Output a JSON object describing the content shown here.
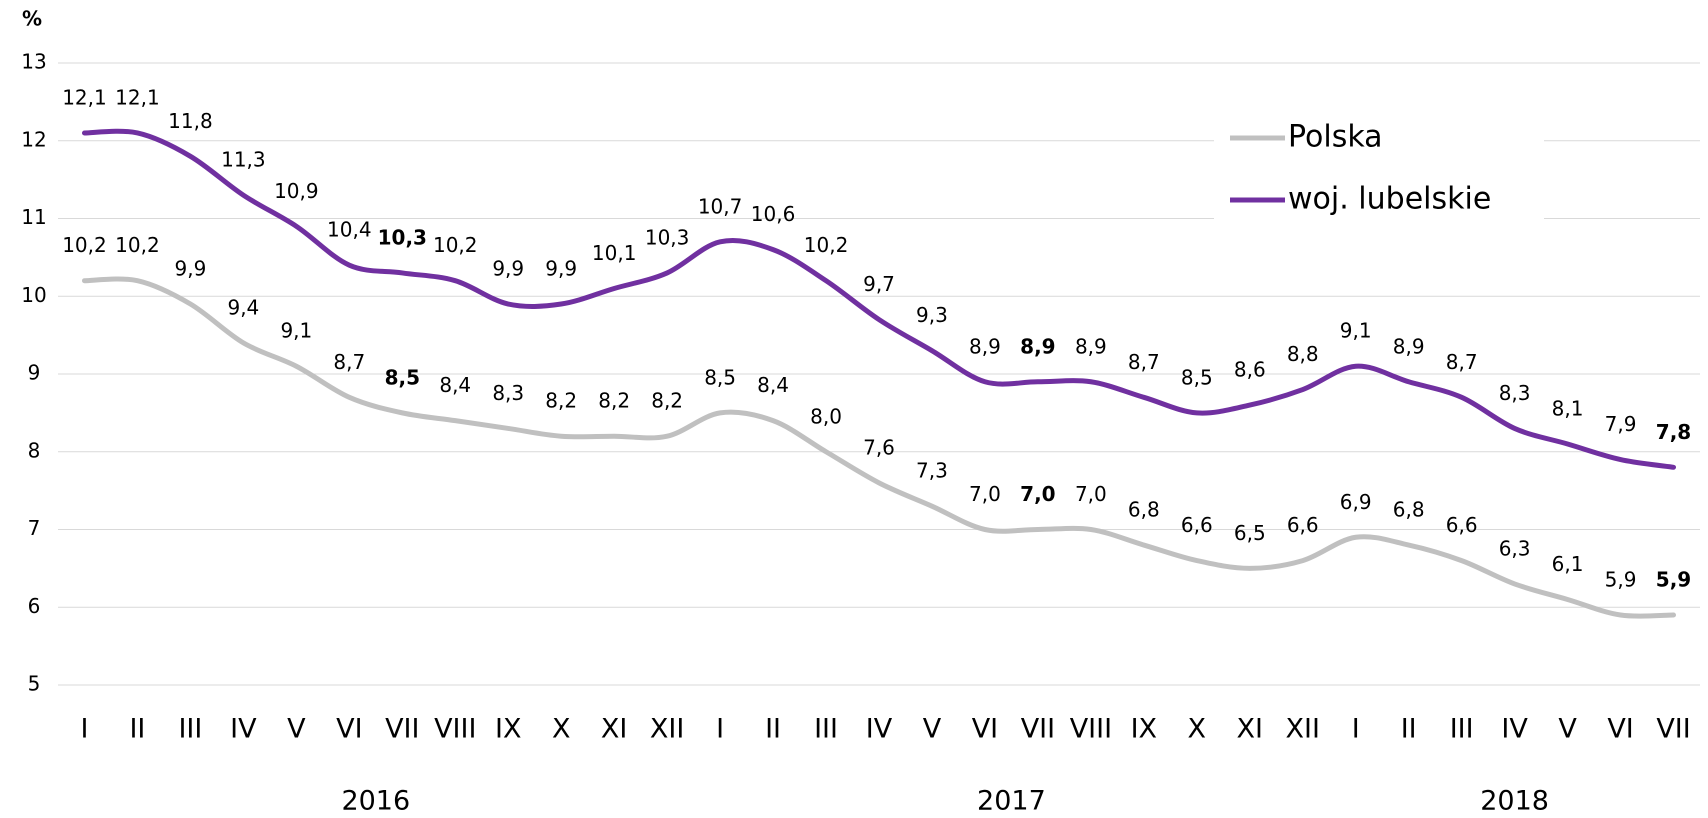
{
  "chart_data": {
    "type": "line",
    "y_label": "%",
    "categories": [
      "I",
      "II",
      "III",
      "IV",
      "V",
      "VI",
      "VII",
      "VIII",
      "IX",
      "X",
      "XI",
      "XII",
      "I",
      "II",
      "III",
      "IV",
      "V",
      "VI",
      "VII",
      "VIII",
      "IX",
      "X",
      "XI",
      "XII",
      "I",
      "II",
      "III",
      "IV",
      "V",
      "VI",
      "VII"
    ],
    "years": [
      "2016",
      "2017",
      "2018"
    ],
    "ylim": [
      5,
      13
    ],
    "yticks": [
      5,
      6,
      7,
      8,
      9,
      10,
      11,
      12,
      13
    ],
    "grid": true,
    "legend": "top-right",
    "bold_label_indices": [
      6,
      18,
      30
    ],
    "series": [
      {
        "name": "Polska",
        "color": "#c0c0c0",
        "values": [
          10.2,
          10.2,
          9.9,
          9.4,
          9.1,
          8.7,
          8.5,
          8.4,
          8.3,
          8.2,
          8.2,
          8.2,
          8.5,
          8.4,
          8.0,
          7.6,
          7.3,
          7.0,
          7.0,
          7.0,
          6.8,
          6.6,
          6.5,
          6.6,
          6.9,
          6.8,
          6.6,
          6.3,
          6.1,
          5.9,
          5.9
        ],
        "value_labels": [
          "10,2",
          "10,2",
          "9,9",
          "9,4",
          "9,1",
          "8,7",
          "8,5",
          "8,4",
          "8,3",
          "8,2",
          "8,2",
          "8,2",
          "8,5",
          "8,4",
          "8,0",
          "7,6",
          "7,3",
          "7,0",
          "7,0",
          "7,0",
          "6,8",
          "6,6",
          "6,5",
          "6,6",
          "6,9",
          "6,8",
          "6,6",
          "6,3",
          "6,1",
          "5,9",
          "5,9"
        ]
      },
      {
        "name": "woj. lubelskie",
        "color": "#7030a0",
        "values": [
          12.1,
          12.1,
          11.8,
          11.3,
          10.9,
          10.4,
          10.3,
          10.2,
          9.9,
          9.9,
          10.1,
          10.3,
          10.7,
          10.6,
          10.2,
          9.7,
          9.3,
          8.9,
          8.9,
          8.9,
          8.7,
          8.5,
          8.6,
          8.8,
          9.1,
          8.9,
          8.7,
          8.3,
          8.1,
          7.9,
          7.8
        ],
        "value_labels": [
          "12,1",
          "12,1",
          "11,8",
          "11,3",
          "10,9",
          "10,4",
          "10,3",
          "10,2",
          "9,9",
          "9,9",
          "10,1",
          "10,3",
          "10,7",
          "10,6",
          "10,2",
          "9,7",
          "9,3",
          "8,9",
          "8,9",
          "8,9",
          "8,7",
          "8,5",
          "8,6",
          "8,8",
          "9,1",
          "8,9",
          "8,7",
          "8,3",
          "8,1",
          "7,9",
          "7,8"
        ]
      }
    ]
  }
}
